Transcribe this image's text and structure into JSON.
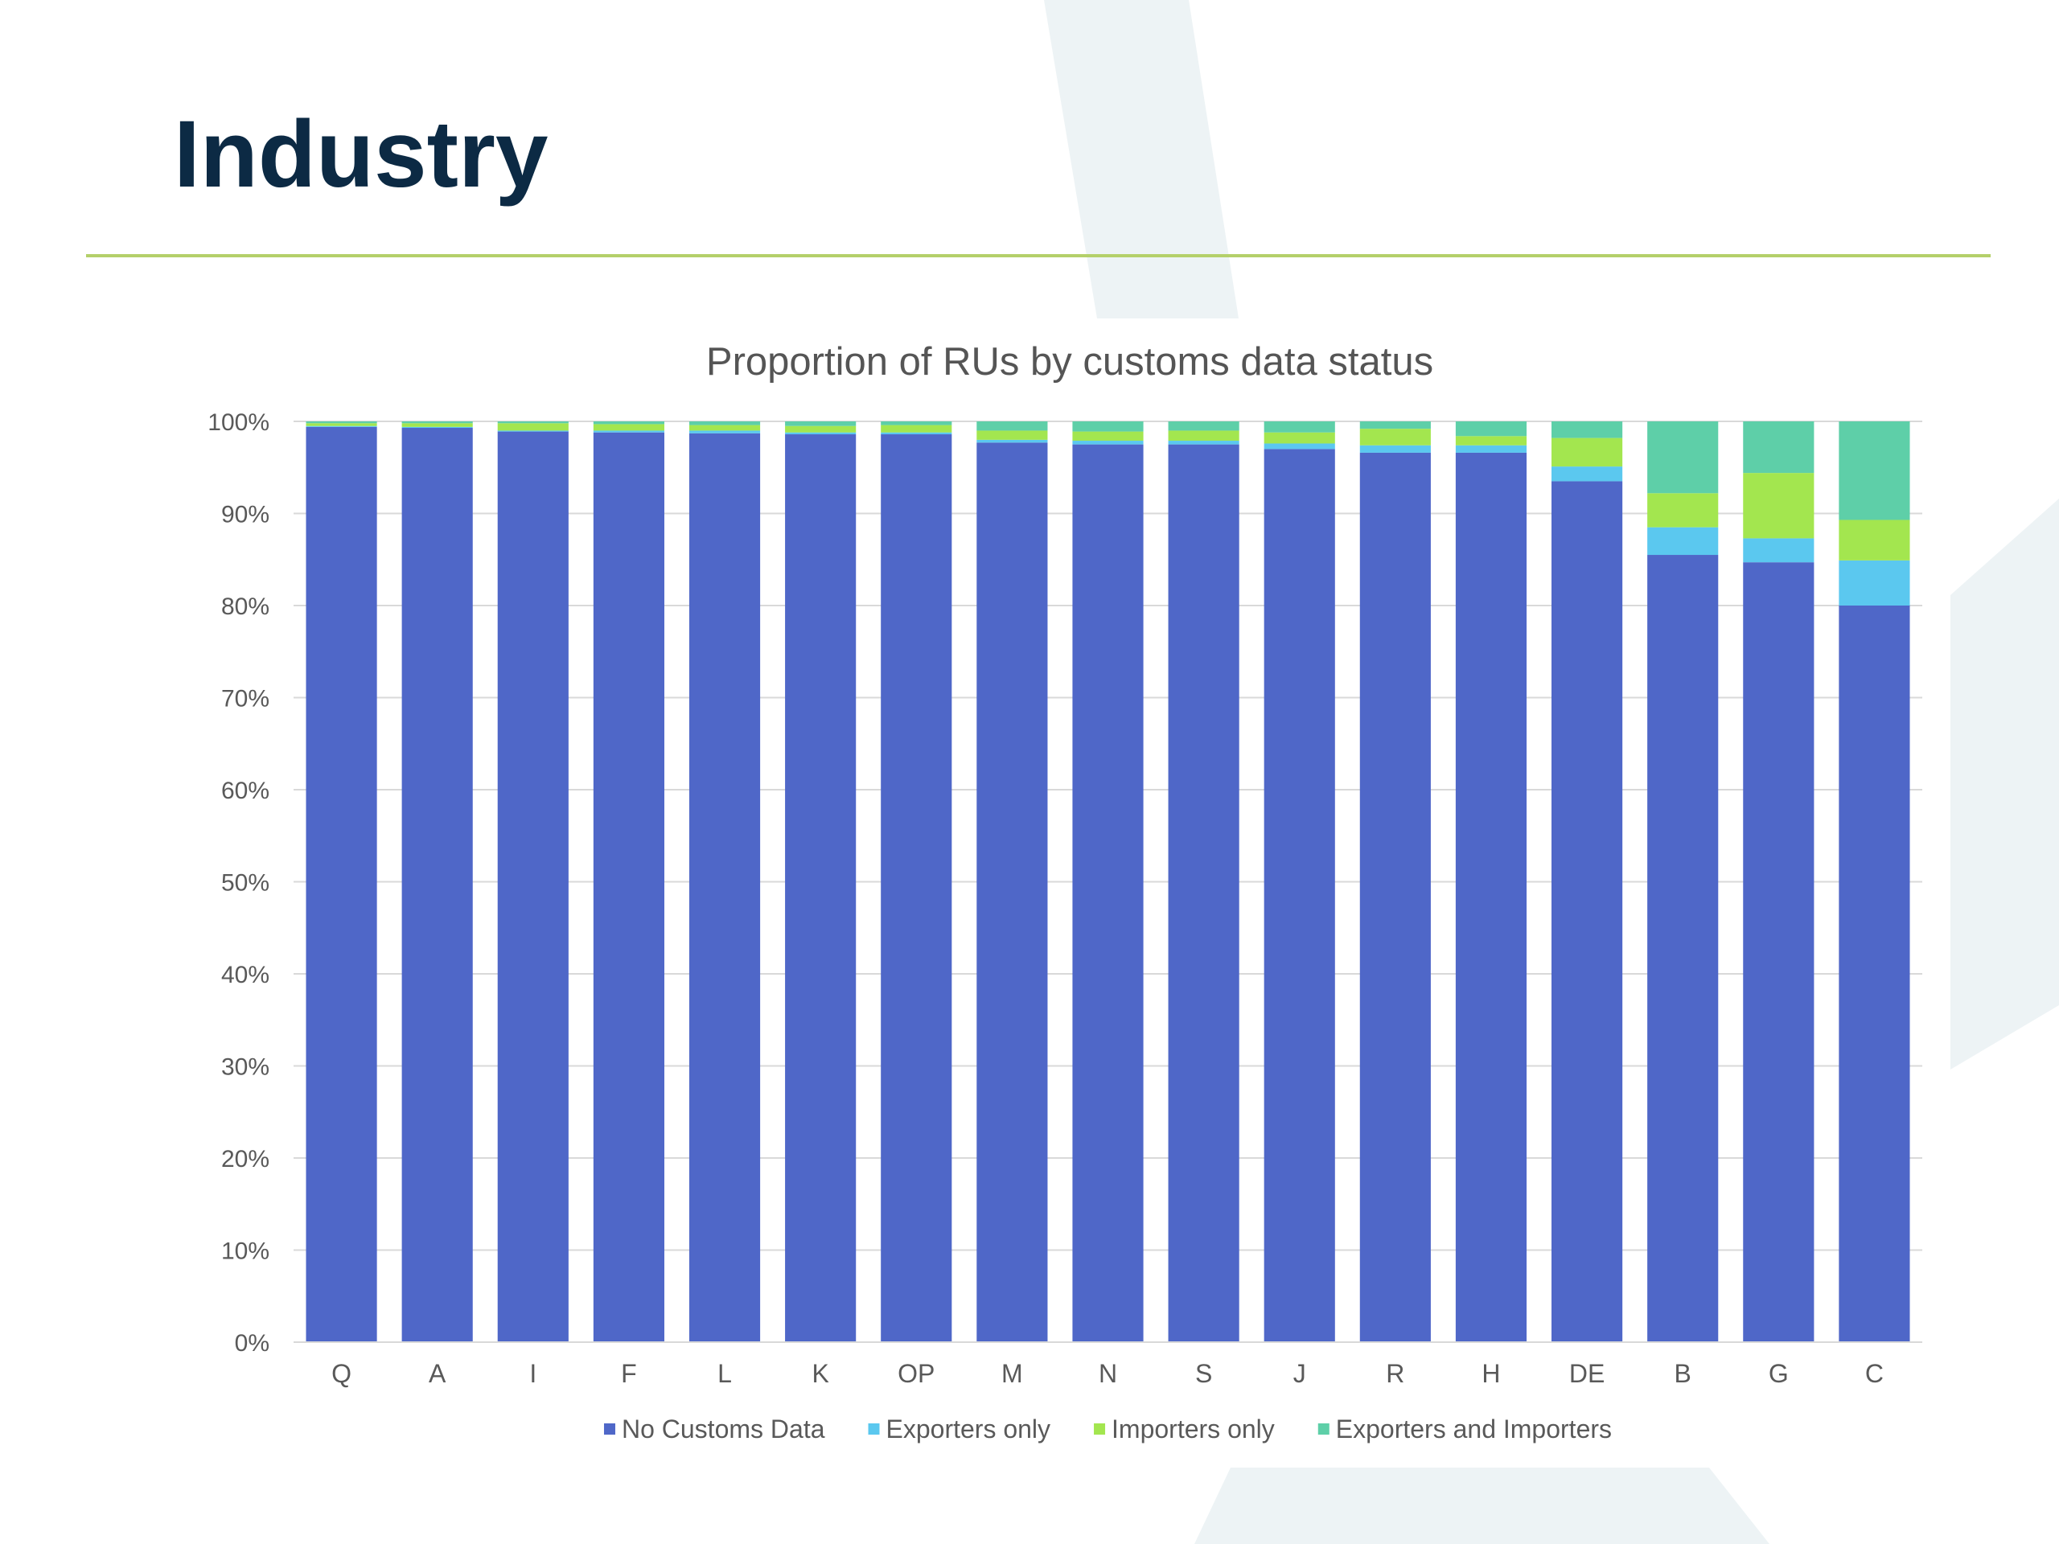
{
  "slide": {
    "title": "Industry"
  },
  "colors": {
    "title": "#0c2a44",
    "rule": "#b4d06a",
    "decor": "#edf3f5"
  },
  "chart_data": {
    "type": "bar",
    "stacked": true,
    "title": "Proportion of RUs by customs data status",
    "xlabel": "",
    "ylabel": "",
    "ylim": [
      0,
      100
    ],
    "y_ticks": [
      "0%",
      "10%",
      "20%",
      "30%",
      "40%",
      "50%",
      "60%",
      "70%",
      "80%",
      "90%",
      "100%"
    ],
    "grid": true,
    "legend_position": "bottom",
    "categories": [
      "Q",
      "A",
      "I",
      "F",
      "L",
      "K",
      "OP",
      "M",
      "N",
      "S",
      "J",
      "R",
      "H",
      "DE",
      "B",
      "G",
      "C"
    ],
    "series": [
      {
        "name": "No Customs Data",
        "color": "#4f67c8",
        "values": [
          99.4,
          99.3,
          98.9,
          98.8,
          98.7,
          98.6,
          98.6,
          97.7,
          97.5,
          97.5,
          97.0,
          96.6,
          96.6,
          93.5,
          85.5,
          84.7,
          80.0
        ]
      },
      {
        "name": "Exporters only",
        "color": "#5bc8ef",
        "values": [
          0.1,
          0.1,
          0.1,
          0.2,
          0.3,
          0.2,
          0.2,
          0.3,
          0.4,
          0.4,
          0.6,
          0.8,
          0.8,
          1.6,
          3.0,
          2.6,
          4.9
        ]
      },
      {
        "name": "Importers only",
        "color": "#a3e64f",
        "values": [
          0.3,
          0.4,
          0.8,
          0.7,
          0.6,
          0.7,
          0.8,
          1.0,
          1.0,
          1.1,
          1.2,
          1.8,
          1.0,
          3.1,
          3.7,
          7.1,
          4.4
        ]
      },
      {
        "name": "Exporters and Importers",
        "color": "#5ecfa8",
        "values": [
          0.2,
          0.2,
          0.2,
          0.3,
          0.4,
          0.5,
          0.4,
          1.0,
          1.1,
          1.0,
          1.2,
          0.8,
          1.6,
          1.8,
          7.8,
          5.6,
          10.7
        ]
      }
    ]
  }
}
